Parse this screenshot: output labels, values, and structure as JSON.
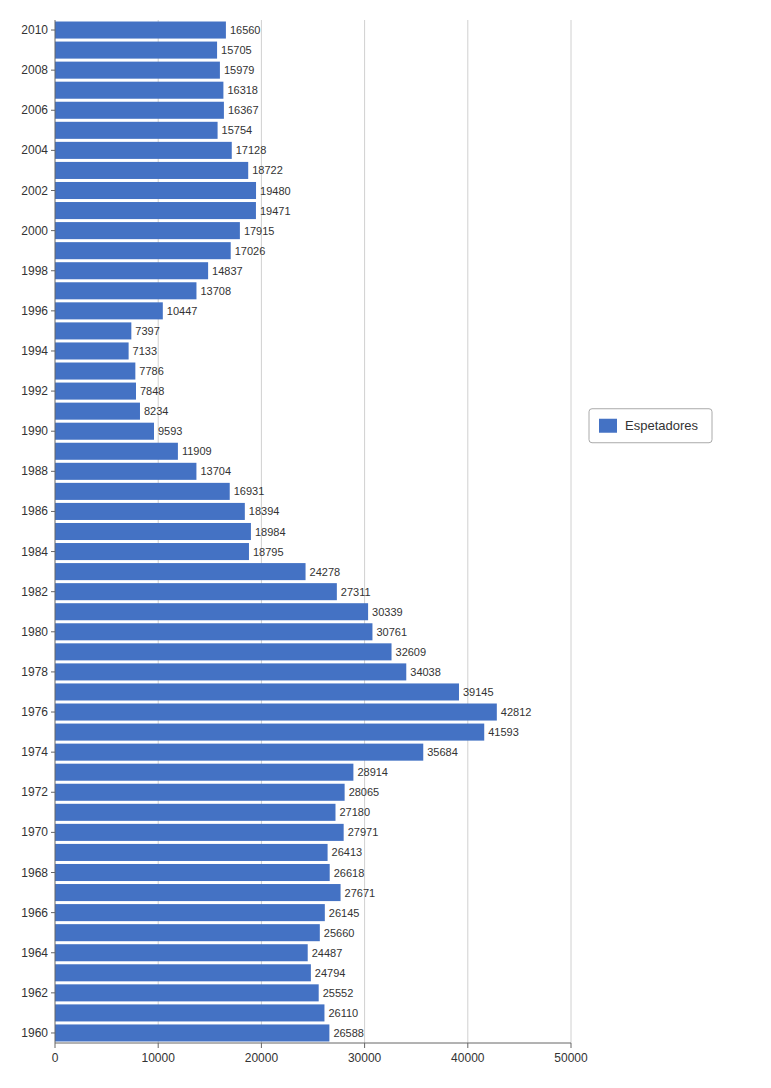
{
  "chart_data": {
    "type": "bar",
    "orientation": "horizontal",
    "categories": [
      "1960",
      null,
      "1962",
      null,
      "1964",
      null,
      "1966",
      null,
      "1968",
      null,
      "1970",
      null,
      "1972",
      null,
      "1974",
      null,
      "1976",
      null,
      "1978",
      null,
      "1980",
      null,
      "1982",
      null,
      "1984",
      null,
      "1986",
      null,
      "1988",
      null,
      "1990",
      null,
      "1992",
      null,
      "1994",
      null,
      "1996",
      null,
      "1998",
      null,
      "2000",
      null,
      "2002",
      null,
      "2004",
      null,
      "2006",
      null,
      "2008",
      null,
      "2010"
    ],
    "series": [
      {
        "name": "Espetadores",
        "color": "#4472C4",
        "values": [
          26588,
          26110,
          25552,
          24794,
          24487,
          25660,
          26145,
          27671,
          26618,
          26413,
          27971,
          27180,
          28065,
          28914,
          35684,
          41593,
          42812,
          39145,
          34038,
          32609,
          30761,
          30339,
          27311,
          24278,
          18795,
          18984,
          18394,
          16931,
          13704,
          11909,
          9593,
          8234,
          7848,
          7786,
          7133,
          7397,
          10447,
          13708,
          14837,
          17026,
          17915,
          19471,
          19480,
          18722,
          17128,
          15754,
          16367,
          16318,
          15979,
          15705,
          16560
        ]
      }
    ],
    "xlim": [
      0,
      50000
    ],
    "xticks": [
      0,
      10000,
      20000,
      30000,
      40000,
      50000
    ],
    "grid": true,
    "data_labels": true,
    "legend": "right"
  }
}
